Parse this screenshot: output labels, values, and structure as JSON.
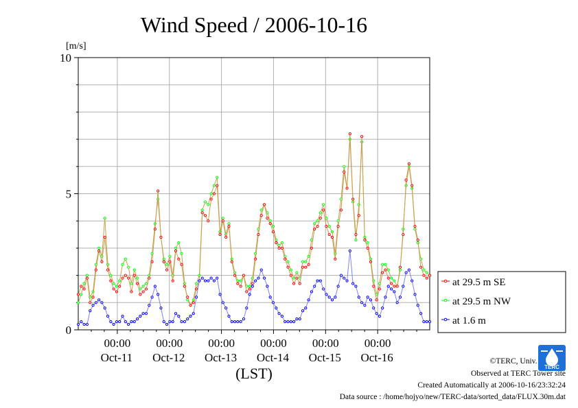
{
  "chart_data": {
    "type": "line",
    "title": "Wind Speed / 2006-10-16",
    "ylabel": "[m/s]",
    "xlabel": "(LST)",
    "ylim": [
      0,
      10
    ],
    "yticks": [
      "0",
      "5",
      "10"
    ],
    "x_range": [
      "2006-10-10 06:00",
      "2006-10-16 24:00"
    ],
    "x_tick_time": "00:00",
    "x_date_labels": [
      "Oct-11",
      "Oct-12",
      "Oct-13",
      "Oct-14",
      "Oct-15",
      "Oct-16"
    ],
    "grid": true,
    "legend_position": "right",
    "sample_interval_hours": 2,
    "series": [
      {
        "name": "at 29.5 m SE",
        "color": "#ff0000",
        "values": [
          1.3,
          1.6,
          1.5,
          1.9,
          1.0,
          1.2,
          2.2,
          2.9,
          2.5,
          3.4,
          2.2,
          1.8,
          1.5,
          1.4,
          1.6,
          1.9,
          2.0,
          1.9,
          1.4,
          2.0,
          1.7,
          1.3,
          1.4,
          1.5,
          1.9,
          2.5,
          3.7,
          5.1,
          3.4,
          2.5,
          2.2,
          2.5,
          1.8,
          2.9,
          2.6,
          2.4,
          1.6,
          1.2,
          0.9,
          1.0,
          1.5,
          1.8,
          4.3,
          4.2,
          4.0,
          4.8,
          5.0,
          5.3,
          3.5,
          4.0,
          3.4,
          3.8,
          2.5,
          2.0,
          1.7,
          1.6,
          2.0,
          1.4,
          1.5,
          1.7,
          2.6,
          3.5,
          4.2,
          4.6,
          4.1,
          3.9,
          3.6,
          3.2,
          3.0,
          3.0,
          2.6,
          2.3,
          2.0,
          1.7,
          1.9,
          1.7,
          2.3,
          2.3,
          2.4,
          3.0,
          3.7,
          3.8,
          4.1,
          4.4,
          3.8,
          3.5,
          3.4,
          2.6,
          3.8,
          4.4,
          5.8,
          5.2,
          7.2,
          4.8,
          3.5,
          4.2,
          7.1,
          3.3,
          3.0,
          2.5,
          1.6,
          1.1,
          1.5,
          2.1,
          2.2,
          1.9,
          1.7,
          1.6,
          1.6,
          2.3,
          3.5,
          5.5,
          6.1,
          5.3,
          3.8,
          3.3,
          2.3,
          2.0,
          1.9,
          2.0
        ],
        "x_end_hours": 162
      },
      {
        "name": "at 29.5 m NW",
        "color": "#00ff00",
        "values": [
          1.0,
          1.3,
          1.7,
          2.0,
          1.2,
          1.4,
          2.4,
          3.0,
          2.7,
          4.1,
          2.4,
          2.0,
          1.7,
          1.6,
          1.8,
          2.4,
          2.6,
          2.3,
          1.7,
          2.2,
          1.9,
          1.5,
          1.6,
          1.7,
          2.0,
          2.8,
          3.9,
          4.8,
          3.4,
          2.6,
          2.4,
          2.7,
          2.0,
          3.0,
          3.2,
          2.8,
          1.7,
          1.1,
          0.9,
          1.1,
          1.7,
          2.0,
          4.4,
          4.7,
          4.6,
          5.0,
          5.3,
          5.6,
          3.6,
          4.1,
          3.5,
          3.9,
          2.6,
          2.1,
          1.8,
          1.8,
          2.0,
          1.6,
          1.6,
          1.9,
          2.8,
          3.7,
          4.4,
          4.6,
          4.3,
          4.0,
          3.8,
          3.3,
          3.1,
          3.2,
          2.7,
          2.5,
          2.2,
          1.9,
          2.1,
          1.9,
          2.5,
          2.5,
          2.7,
          3.3,
          3.9,
          4.0,
          4.3,
          4.6,
          4.1,
          3.8,
          3.6,
          2.8,
          4.0,
          4.8,
          6.0,
          5.2,
          7.0,
          4.7,
          3.3,
          4.6,
          6.9,
          3.4,
          3.2,
          2.6,
          1.8,
          1.3,
          1.7,
          2.4,
          2.4,
          2.2,
          1.9,
          1.8,
          1.6,
          2.2,
          3.7,
          5.3,
          6.0,
          5.2,
          3.7,
          3.2,
          2.6,
          2.2,
          2.1,
          2.0
        ],
        "x_end_hours": 162
      },
      {
        "name": "at 1.6 m",
        "color": "#0000ff",
        "values": [
          0.2,
          0.3,
          0.2,
          0.2,
          0.7,
          0.9,
          1.0,
          1.1,
          1.0,
          0.8,
          0.5,
          0.3,
          0.2,
          0.3,
          0.3,
          0.5,
          0.3,
          0.2,
          0.3,
          0.3,
          0.4,
          0.5,
          0.6,
          0.6,
          0.9,
          1.2,
          1.6,
          1.3,
          0.8,
          0.3,
          0.2,
          0.3,
          0.3,
          0.6,
          0.5,
          0.3,
          0.3,
          0.4,
          0.5,
          0.6,
          1.2,
          1.8,
          1.9,
          1.8,
          1.8,
          1.9,
          1.8,
          1.9,
          1.3,
          1.0,
          0.8,
          0.5,
          0.3,
          0.3,
          0.3,
          0.3,
          0.4,
          0.8,
          1.3,
          1.6,
          1.8,
          1.9,
          2.2,
          1.9,
          1.6,
          1.2,
          1.0,
          0.8,
          0.6,
          0.5,
          0.3,
          0.3,
          0.3,
          0.3,
          0.4,
          0.4,
          0.7,
          0.8,
          1.1,
          1.4,
          1.6,
          1.8,
          1.8,
          1.5,
          1.3,
          1.2,
          1.1,
          1.2,
          1.6,
          2.0,
          1.9,
          1.8,
          2.9,
          1.7,
          1.6,
          1.2,
          1.0,
          0.9,
          1.2,
          1.1,
          0.8,
          0.6,
          0.5,
          0.8,
          1.2,
          1.6,
          1.5,
          1.4,
          1.0,
          1.2,
          1.6,
          2.1,
          2.2,
          1.8,
          1.3,
          0.9,
          0.6,
          0.3,
          0.3,
          0.3
        ],
        "x_end_hours": 162
      }
    ]
  },
  "footer": {
    "copyright": "©TERC, Univ. Tsukuba",
    "observed": "Observed at TERC Tower site",
    "created": "Created Automatically at 2006-10-16/23:32:24",
    "source": "Data source : /home/hojyo/new/TERC-data/sorted_data/FLUX.30m.dat"
  },
  "logo": {
    "text": "TERC",
    "color": "#1e6fd8"
  }
}
